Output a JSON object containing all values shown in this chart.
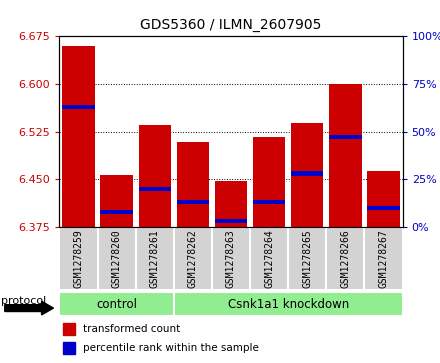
{
  "title": "GDS5360 / ILMN_2607905",
  "samples": [
    "GSM1278259",
    "GSM1278260",
    "GSM1278261",
    "GSM1278262",
    "GSM1278263",
    "GSM1278264",
    "GSM1278265",
    "GSM1278266",
    "GSM1278267"
  ],
  "transformed_count": [
    6.66,
    6.457,
    6.535,
    6.508,
    6.447,
    6.517,
    6.538,
    6.6,
    6.463
  ],
  "percentile_rank": [
    63,
    8,
    20,
    13,
    3,
    13,
    28,
    47,
    10
  ],
  "y_min": 6.375,
  "y_max": 6.675,
  "y_ticks": [
    6.375,
    6.45,
    6.525,
    6.6,
    6.675
  ],
  "y2_ticks": [
    0,
    25,
    50,
    75,
    100
  ],
  "bar_color": "#cc0000",
  "percentile_color": "#0000cc",
  "n_control": 3,
  "n_knockdown": 6,
  "control_label": "control",
  "knockdown_label": "Csnk1a1 knockdown",
  "protocol_label": "protocol",
  "legend_red": "transformed count",
  "legend_blue": "percentile rank within the sample",
  "bar_width": 0.85,
  "green_color": "#90ee90",
  "gray_color": "#d3d3d3",
  "white_color": "#ffffff"
}
